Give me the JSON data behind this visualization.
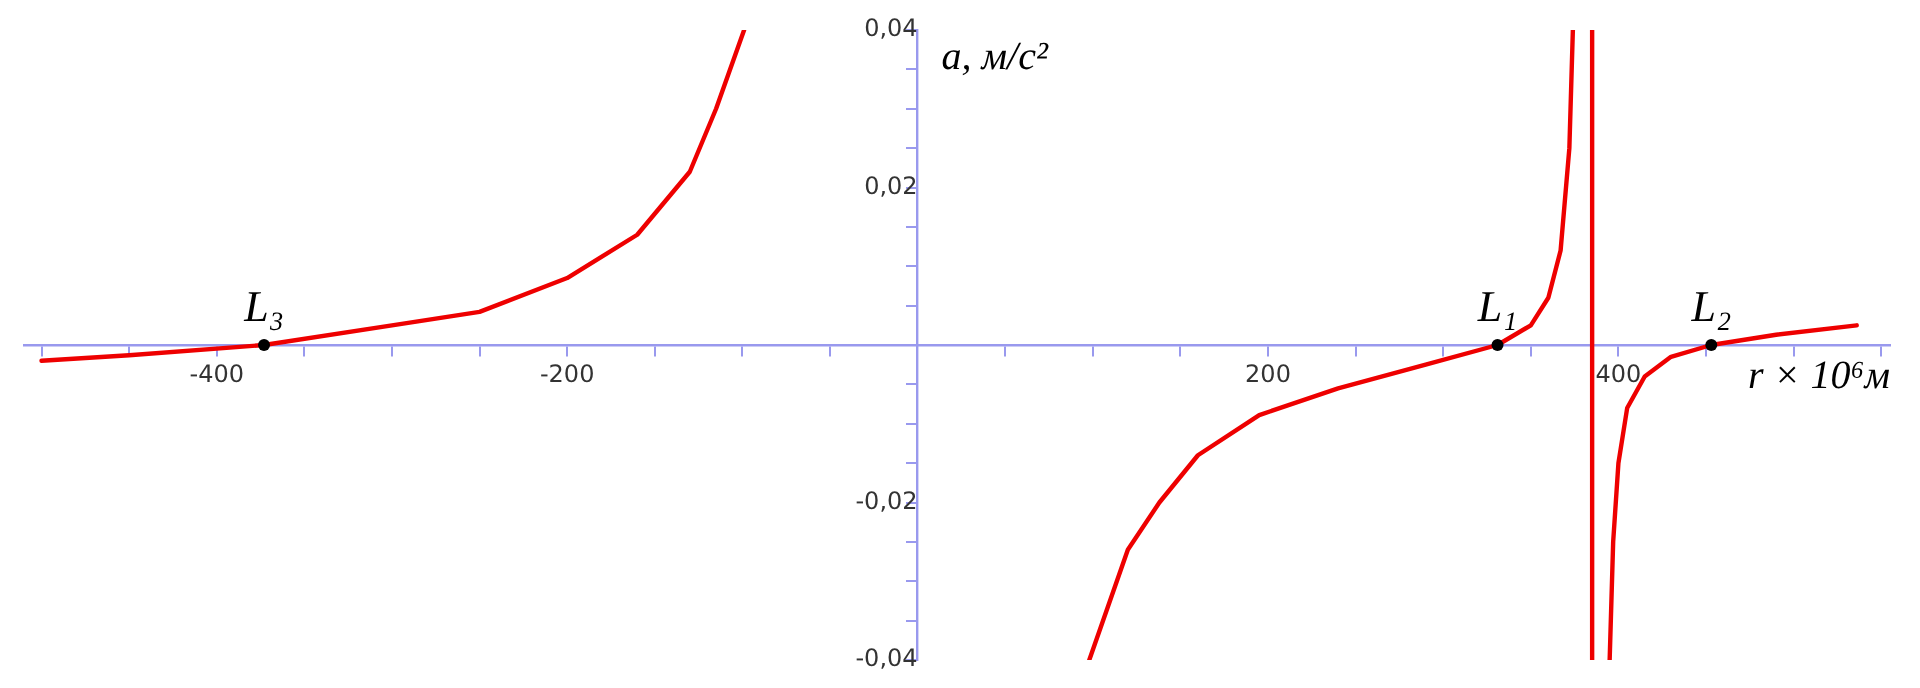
{
  "chart_data": {
    "type": "line",
    "xlabel": "r × 10⁶м",
    "ylabel": "a, м/с²",
    "xlim": [
      -510,
      555
    ],
    "ylim": [
      -0.04,
      0.04
    ],
    "xticks": [
      {
        "value": -500,
        "label": null
      },
      {
        "value": -450,
        "label": null
      },
      {
        "value": -400,
        "label": "-400"
      },
      {
        "value": -350,
        "label": null
      },
      {
        "value": -300,
        "label": null
      },
      {
        "value": -250,
        "label": null
      },
      {
        "value": -200,
        "label": "-200"
      },
      {
        "value": -150,
        "label": null
      },
      {
        "value": -100,
        "label": null
      },
      {
        "value": -50,
        "label": null
      },
      {
        "value": 50,
        "label": null
      },
      {
        "value": 100,
        "label": null
      },
      {
        "value": 150,
        "label": null
      },
      {
        "value": 200,
        "label": "200"
      },
      {
        "value": 250,
        "label": null
      },
      {
        "value": 300,
        "label": null
      },
      {
        "value": 350,
        "label": null
      },
      {
        "value": 400,
        "label": "400"
      },
      {
        "value": 450,
        "label": null
      },
      {
        "value": 500,
        "label": null
      },
      {
        "value": 550,
        "label": null
      }
    ],
    "yticks": [
      {
        "value": -0.04,
        "label": "-0,04"
      },
      {
        "value": -0.035,
        "label": null
      },
      {
        "value": -0.03,
        "label": null
      },
      {
        "value": -0.025,
        "label": null
      },
      {
        "value": -0.02,
        "label": "-0,02"
      },
      {
        "value": -0.015,
        "label": null
      },
      {
        "value": -0.01,
        "label": null
      },
      {
        "value": -0.005,
        "label": null
      },
      {
        "value": 0.005,
        "label": null
      },
      {
        "value": 0.01,
        "label": null
      },
      {
        "value": 0.015,
        "label": null
      },
      {
        "value": 0.02,
        "label": "0,02"
      },
      {
        "value": 0.025,
        "label": null
      },
      {
        "value": 0.03,
        "label": null
      },
      {
        "value": 0.035,
        "label": null
      },
      {
        "value": 0.04,
        "label": "0,04"
      }
    ],
    "grid": false,
    "legend": false,
    "marker": "none",
    "line_style": "solid",
    "series": [
      {
        "color": "#ee0000",
        "x": [
          -500,
          -450,
          -373,
          -300,
          -250,
          -200,
          -160,
          -130,
          -115,
          -99
        ],
        "values": [
          -0.002,
          -0.0013,
          0,
          0.0025,
          0.0042,
          0.0085,
          0.014,
          0.022,
          0.03,
          0.04
        ]
      },
      {
        "color": "#ee0000",
        "x": [
          98,
          120,
          138,
          160,
          195,
          240,
          290,
          331,
          350,
          360,
          367,
          372,
          374
        ],
        "values": [
          -0.04,
          -0.026,
          -0.02,
          -0.014,
          -0.0089,
          -0.0055,
          -0.0025,
          0,
          0.0025,
          0.006,
          0.012,
          0.025,
          0.04
        ]
      },
      {
        "color": "#ee0000",
        "x": [
          385,
          385
        ],
        "values": [
          0.04,
          -0.04
        ]
      },
      {
        "color": "#ee0000",
        "x": [
          395,
          397,
          400,
          405,
          415,
          430,
          453,
          490,
          536
        ],
        "values": [
          -0.04,
          -0.025,
          -0.015,
          -0.008,
          -0.004,
          -0.0015,
          0,
          0.0013,
          0.0025
        ]
      }
    ],
    "annotations": [
      {
        "text": "L₃",
        "x": -373,
        "y": 0
      },
      {
        "text": "L₁",
        "x": 331,
        "y": 0
      },
      {
        "text": "L₂",
        "x": 453,
        "y": 0
      }
    ]
  }
}
